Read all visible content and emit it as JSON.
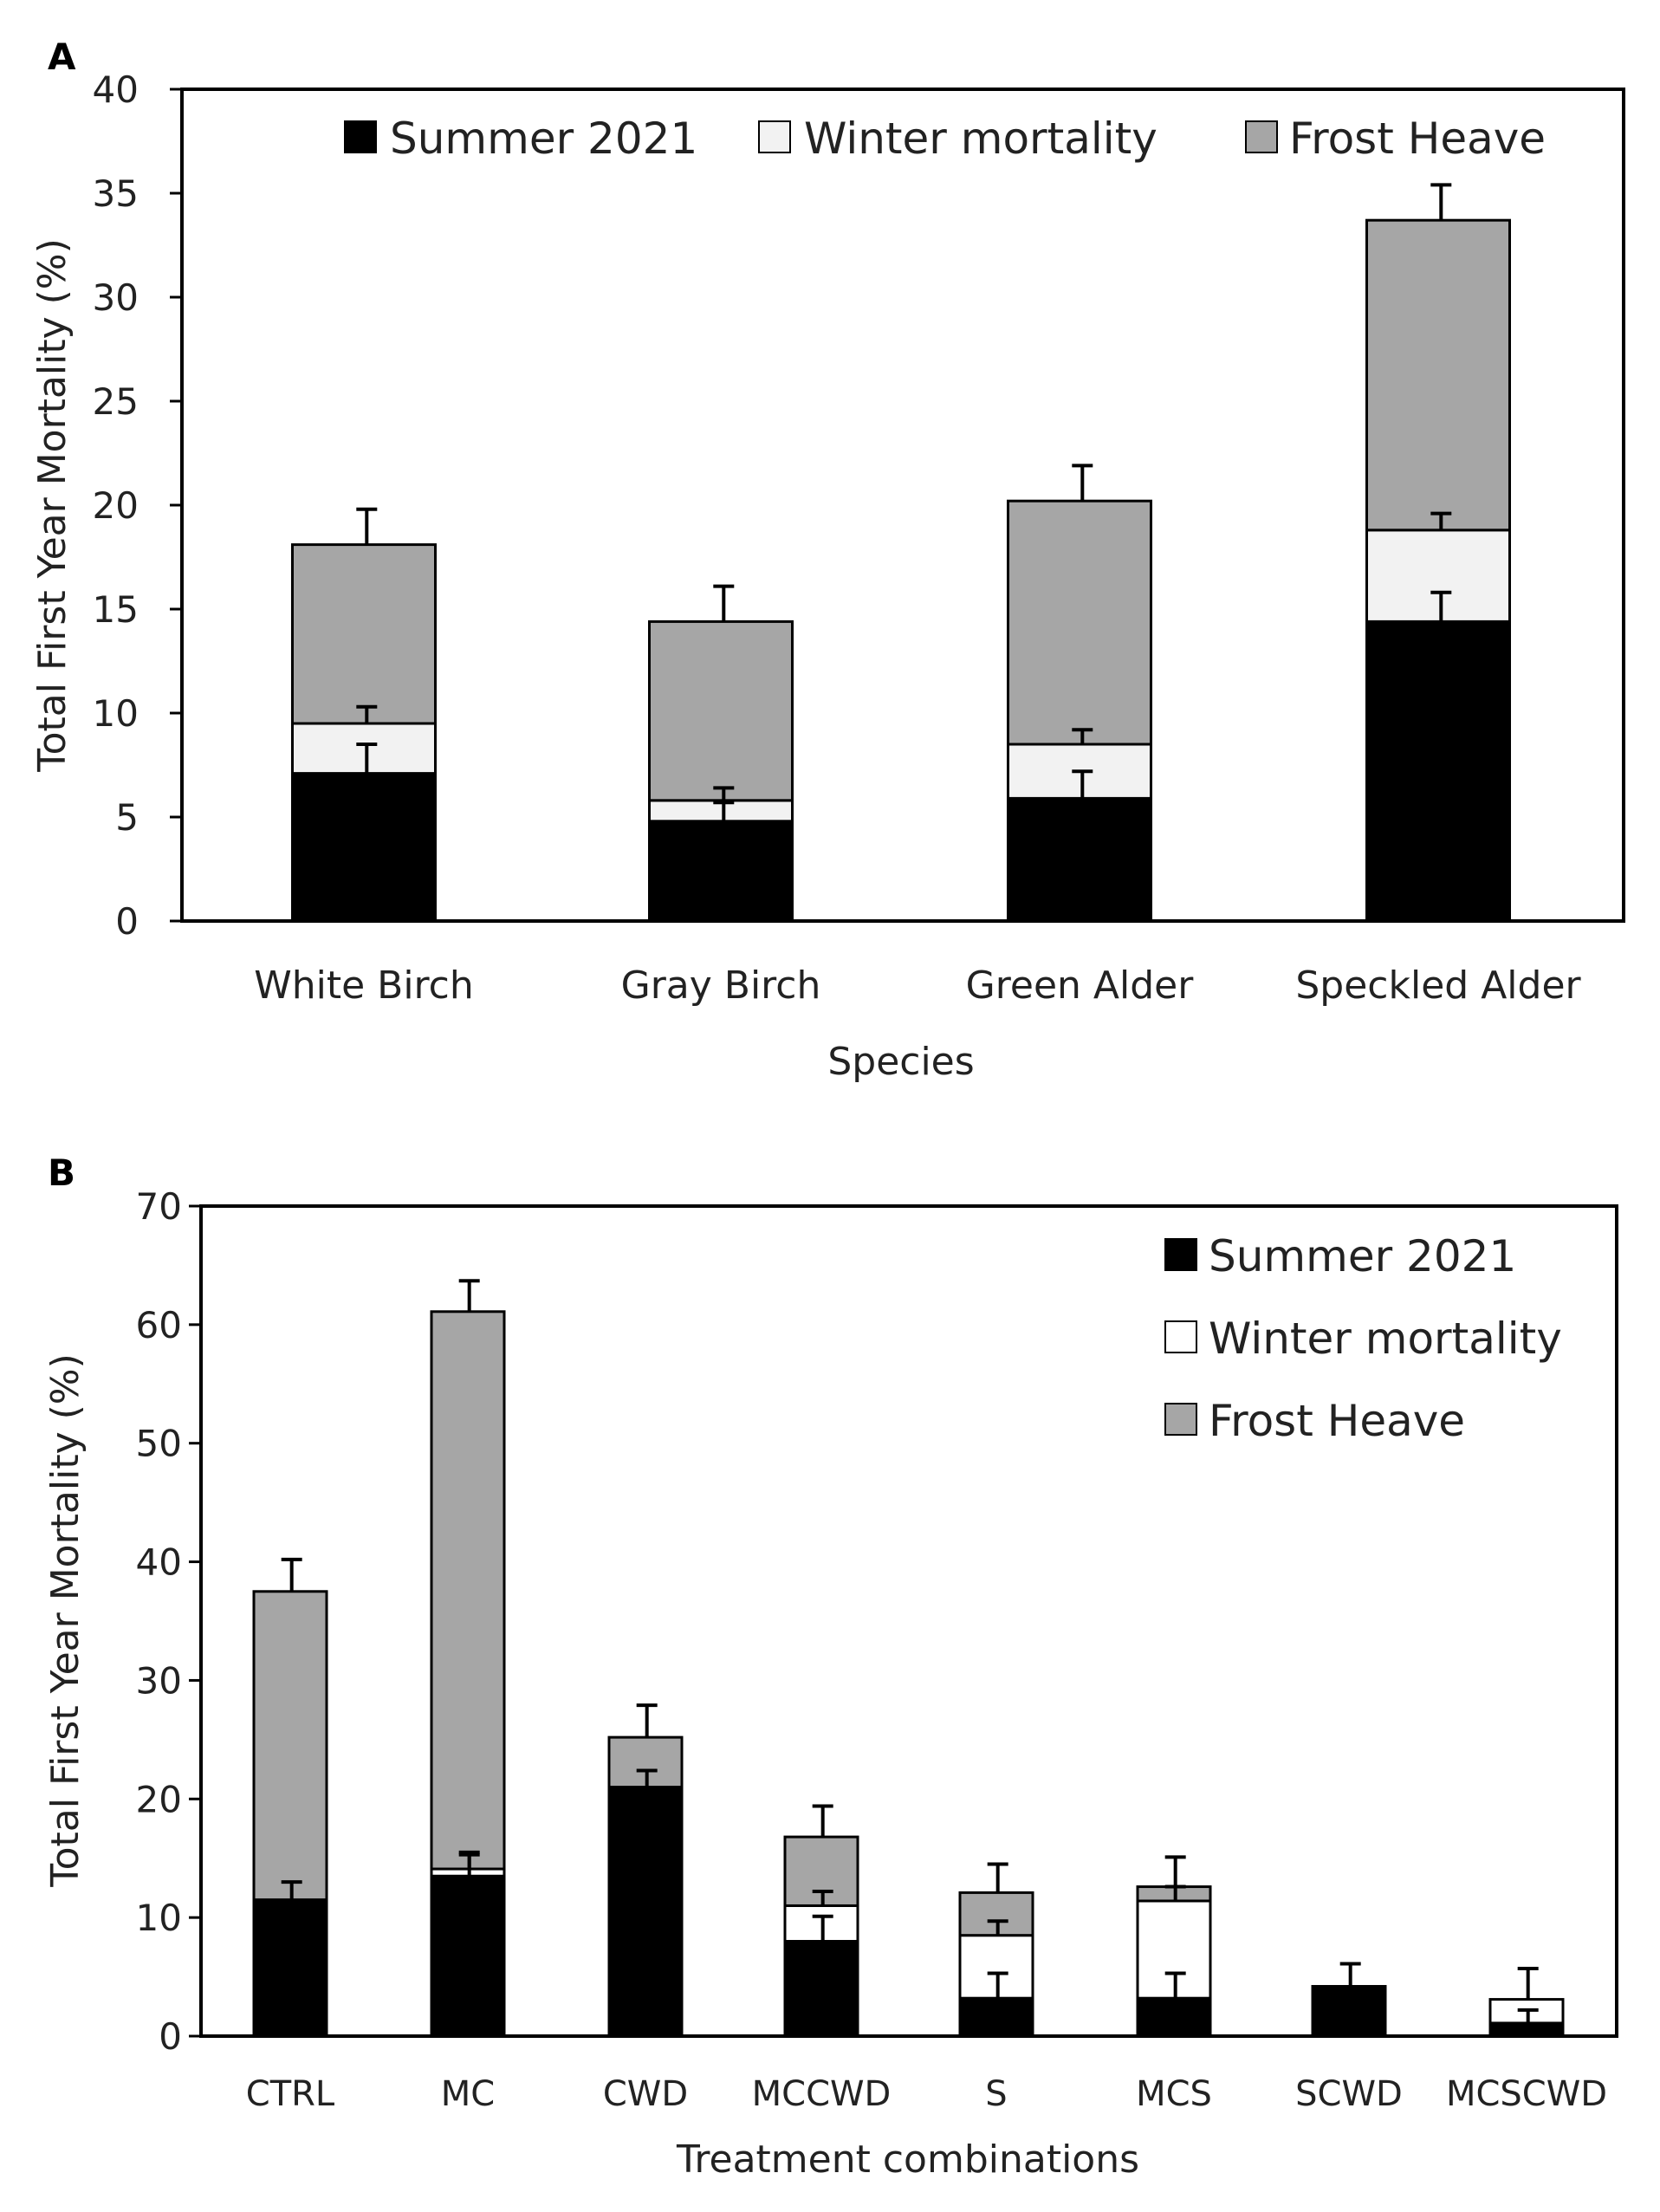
{
  "chart_data": [
    {
      "panel_label": "A",
      "type": "bar",
      "stacked": true,
      "categories": [
        "White Birch",
        "Gray Birch",
        "Green Alder",
        "Speckled Alder"
      ],
      "series": [
        {
          "name": "Summer 2021",
          "color": "#000000",
          "values": [
            7.1,
            4.8,
            5.9,
            14.4
          ],
          "error": [
            1.4,
            0.9,
            1.3,
            1.4
          ]
        },
        {
          "name": "Winter mortality",
          "color": "#f2f2f2",
          "values": [
            2.4,
            1.0,
            2.6,
            4.4
          ],
          "error": [
            0.8,
            0.6,
            0.7,
            0.8
          ]
        },
        {
          "name": "Frost Heave",
          "color": "#a6a6a6",
          "values": [
            8.6,
            8.6,
            11.7,
            14.9
          ],
          "error": [
            1.7,
            1.7,
            1.7,
            1.7
          ]
        }
      ],
      "xlabel": "Species",
      "ylabel": "Total First Year Mortality (%)",
      "ylim": [
        0,
        40
      ],
      "yticks": [
        0,
        5,
        10,
        15,
        20,
        25,
        30,
        35,
        40
      ],
      "legend_position": "top"
    },
    {
      "panel_label": "B",
      "type": "bar",
      "stacked": true,
      "categories": [
        "CTRL",
        "MC",
        "CWD",
        "MCCWD",
        "S",
        "MCS",
        "SCWD",
        "MCSCWD"
      ],
      "series": [
        {
          "name": "Summer 2021",
          "color": "#000000",
          "values": [
            11.5,
            13.5,
            21.0,
            8.0,
            3.2,
            3.2,
            4.2,
            1.1
          ],
          "error": [
            1.5,
            2.0,
            1.4,
            2.1,
            2.1,
            2.1,
            1.9,
            1.1
          ]
        },
        {
          "name": "Winter mortality",
          "color": "#ffffff",
          "values": [
            0.0,
            0.6,
            0.0,
            3.0,
            5.3,
            8.2,
            0.0,
            2.0
          ],
          "error": [
            0.0,
            1.2,
            0.0,
            1.2,
            1.2,
            1.2,
            0.0,
            2.6
          ]
        },
        {
          "name": "Frost Heave",
          "color": "#a6a6a6",
          "values": [
            26.0,
            47.0,
            4.2,
            5.8,
            3.6,
            1.2,
            0.0,
            0.0
          ],
          "error": [
            2.7,
            2.6,
            2.7,
            2.6,
            2.4,
            2.5,
            0.0,
            0.0
          ]
        }
      ],
      "xlabel": "Treatment combinations",
      "ylabel": "Total First Year Mortality (%)",
      "ylim": [
        0,
        70
      ],
      "yticks": [
        0,
        10,
        20,
        30,
        40,
        50,
        60,
        70
      ],
      "legend_position": "top-right"
    }
  ]
}
